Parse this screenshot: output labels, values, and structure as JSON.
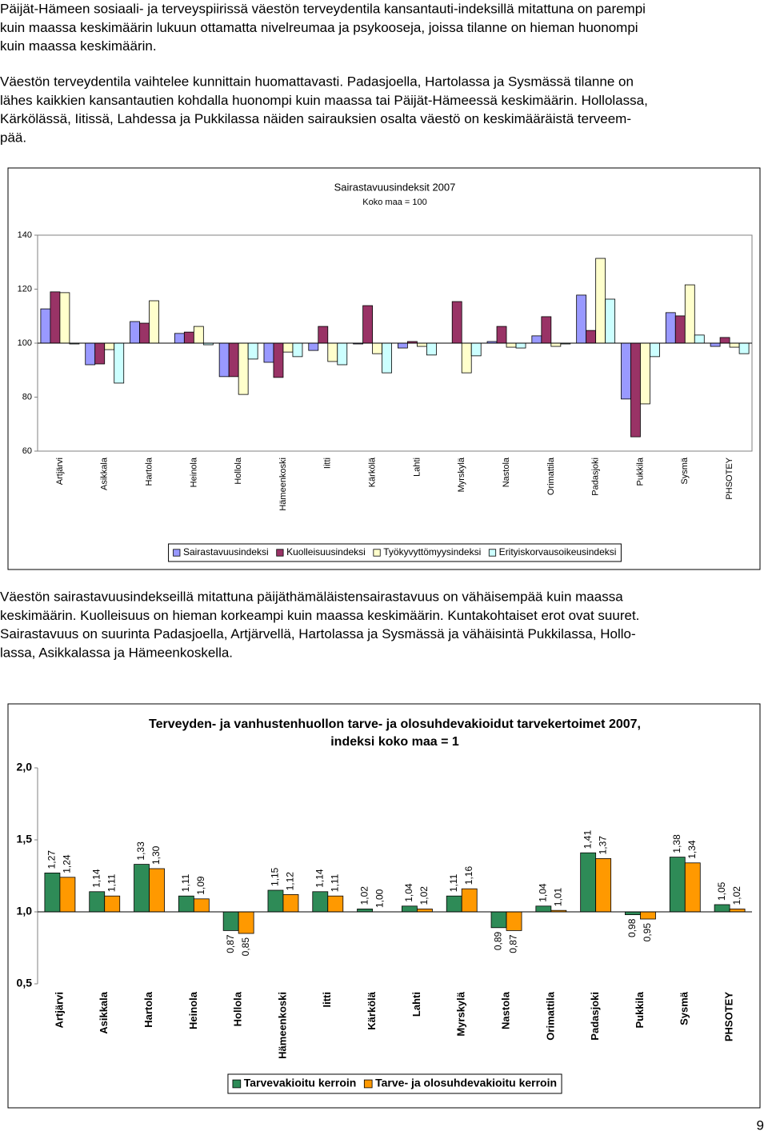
{
  "paragraphs": [
    [
      "Päijät-Hämeen sosiaali- ja terveyspiirissä väestön terveydentila kansantauti-indeksillä mitattuna on parempi",
      "kuin maassa keskimäärin lukuun ottamatta nivelreumaa ja psykooseja, joissa tilanne on hieman huonompi",
      "kuin maassa keskimäärin."
    ],
    [
      "Väestön terveydentila vaihtelee kunnittain huomattavasti. Padasjoella, Hartolassa ja Sysmässä tilanne on",
      "lähes kaikkien kansantautien kohdalla huonompi kuin maassa tai Päijät-Hämeessä keskimäärin. Hollolassa,",
      "Kärkölässä, Iitissä, Lahdessa ja Pukkilassa näiden sairauksien osalta väestö on keskimääräistä terveem-",
      "pää."
    ],
    [
      "Väestön sairastavuusindekseillä mitattuna päijäthämäläistensairastavuus on vähäisempää kuin maassa",
      "keskimäärin. Kuolleisuus on hieman korkeampi kuin maassa keskimäärin. Kuntakohtaiset erot ovat suuret.",
      "Sairastavuus on suurinta Padasjoella, Artjärvellä, Hartolassa ja Sysmässä ja vähäisintä Pukkilassa, Hollo-",
      "lassa, Asikkalassa ja Hämeenkoskella."
    ]
  ],
  "page_number": 9,
  "chart_data": [
    {
      "type": "bar",
      "title": [
        "Sairastavuusindeksit 2007"
      ],
      "subtitle": "Koko maa = 100",
      "categories": [
        "Artjärvi",
        "Asikkala",
        "Hartola",
        "Heinola",
        "Hollola",
        "Hämeenkoski",
        "Iitti",
        "Kärkölä",
        "Lahti",
        "Myrskylä",
        "Nastola",
        "Orimattila",
        "Padasjoki",
        "Pukkila",
        "Sysmä",
        "PHSOTEY"
      ],
      "series": [
        {
          "name": "Sairastavuusindeksi",
          "color": "#9999ff",
          "values": [
            112.7,
            92,
            108,
            103.6,
            87.6,
            92.9,
            97.3,
            99.7,
            98.2,
            100,
            100.6,
            102.7,
            117.8,
            79.3,
            111.3,
            98.8
          ]
        },
        {
          "name": "Kuolleisuusindeksi",
          "color": "#993366",
          "values": [
            119,
            92.3,
            107.4,
            104.1,
            87.6,
            87.3,
            106.2,
            113.9,
            100.6,
            115.4,
            106.2,
            109.8,
            104.7,
            65.3,
            110.1,
            102.1
          ]
        },
        {
          "name": "Työkyvyttömyysindeksi",
          "color": "#ffffcc",
          "values": [
            118.7,
            97.6,
            115.7,
            106.2,
            81,
            96.7,
            93.2,
            96.1,
            98.8,
            89,
            98.5,
            98.8,
            131.4,
            77.5,
            121.6,
            98.5
          ]
        },
        {
          "name": "Erityiskorvausoikeusindeksi",
          "color": "#ccffff",
          "values": [
            99.7,
            85.2,
            100,
            99.4,
            94.1,
            95,
            92,
            89,
            95.6,
            95.3,
            98.2,
            99.7,
            116.3,
            95,
            103,
            96.1
          ]
        }
      ],
      "ylim": [
        60,
        140
      ],
      "yticks": [
        60,
        80,
        100,
        120,
        140
      ],
      "x_axis_at": 100,
      "grid": false,
      "legend": "bottom"
    },
    {
      "type": "bar",
      "title": [
        "Terveyden- ja vanhustenhuollon tarve- ja olosuhdevakioidut tarvekertoimet 2007,",
        "indeksi koko maa = 1"
      ],
      "categories": [
        "Artjärvi",
        "Asikkala",
        "Hartola",
        "Heinola",
        "Hollola",
        "Hämeenkoski",
        "Iitti",
        "Kärkölä",
        "Lahti",
        "Myrskylä",
        "Nastola",
        "Orimattila",
        "Padasjoki",
        "Pukkila",
        "Sysmä",
        "PHSOTEY"
      ],
      "series": [
        {
          "name": "Tarvevakioitu kerroin",
          "color": "#2e8b57",
          "values": [
            1.27,
            1.14,
            1.33,
            1.11,
            0.87,
            1.15,
            1.14,
            1.02,
            1.04,
            1.11,
            0.89,
            1.04,
            1.41,
            0.98,
            1.38,
            1.05
          ],
          "value_labels": [
            "1,27",
            "1,14",
            "1,33",
            "1,11",
            "0,87",
            "1,15",
            "1,14",
            "1,02",
            "1,04",
            "1,11",
            "0,89",
            "1,04",
            "1,41",
            "0,98",
            "1,38",
            "1,05"
          ]
        },
        {
          "name": "Tarve- ja olosuhdevakioitu kerroin",
          "color": "#ff9900",
          "values": [
            1.24,
            1.11,
            1.3,
            1.09,
            0.85,
            1.12,
            1.11,
            1.0,
            1.02,
            1.16,
            0.87,
            1.01,
            1.37,
            0.95,
            1.34,
            1.02
          ],
          "value_labels": [
            "1,24",
            "1,11",
            "1,30",
            "1,09",
            "0,85",
            "1,12",
            "1,11",
            "1,00",
            "1,02",
            "1,16",
            "0,87",
            "1,01",
            "1,37",
            "0,95",
            "1,34",
            "1,02"
          ]
        }
      ],
      "ylim": [
        0.5,
        2.0
      ],
      "yticks": [
        {
          "value": 0.5,
          "label": "0,5"
        },
        {
          "value": 1.0,
          "label": "1,0"
        },
        {
          "value": 1.5,
          "label": "1,5"
        },
        {
          "value": 2.0,
          "label": "2,0"
        }
      ],
      "x_axis_at": 1.0,
      "grid": false,
      "legend": "bottom"
    }
  ]
}
